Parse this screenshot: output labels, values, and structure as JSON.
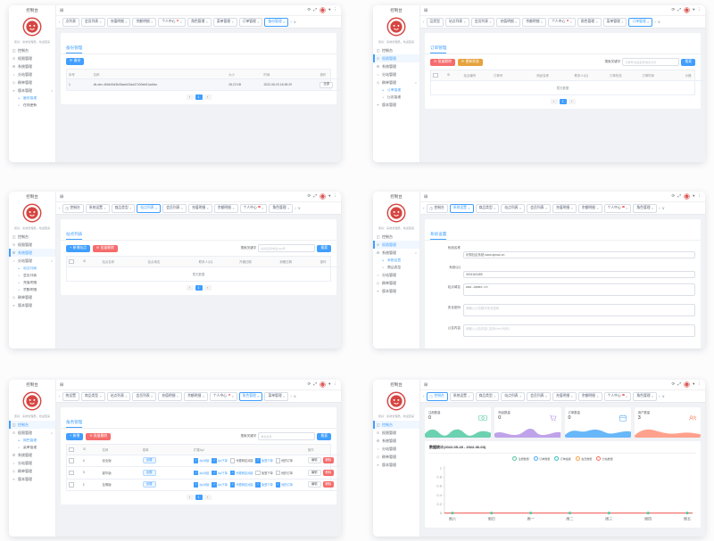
{
  "app": {
    "title": "控制台",
    "greeting": "您好：系统管理员，欢迎回来",
    "colors": {
      "primary": "#409eff",
      "danger": "#f56c6c",
      "warning": "#e6a23c",
      "logo_red": "#d64541"
    },
    "topbar_icons": [
      "collapse-grid-icon",
      "refresh-icon",
      "fullscreen-icon",
      "avatar",
      "caret-down-icon",
      "kebab-menu-icon"
    ]
  },
  "chart_data": {
    "type": "line",
    "title": "数据统计(2022-05-28 - 2022-06-03)",
    "x": [
      "周六",
      "周日",
      "周一",
      "周二",
      "周三",
      "周四",
      "周五"
    ],
    "yticks": [
      1,
      0.8,
      0.6,
      0.4,
      0.2,
      0
    ],
    "ylim": [
      0,
      1
    ],
    "legend_position": "top",
    "series": [
      {
        "name": "注册数量",
        "color": "#52c9a2",
        "values": [
          0,
          0,
          0,
          0,
          0,
          0,
          0
        ]
      },
      {
        "name": "订单数量",
        "color": "#4daaf8",
        "values": [
          0,
          0,
          0,
          0,
          0,
          0,
          0
        ]
      },
      {
        "name": "订单金额",
        "color": "#35c3c3",
        "values": [
          0,
          0,
          0,
          0,
          0,
          0,
          0
        ]
      },
      {
        "name": "会员数量",
        "color": "#ffa040",
        "values": [
          0,
          0,
          0,
          0,
          0,
          0,
          0
        ]
      },
      {
        "name": "分站数量",
        "color": "#ff6a5e",
        "values": [
          0,
          0,
          0,
          0,
          0,
          0,
          0
        ]
      }
    ]
  },
  "panels": [
    {
      "name": "backup-management",
      "sidebar": [
        {
          "label": "控制台",
          "icon": "dashboard-icon"
        },
        {
          "label": "权限管理",
          "icon": "permission-icon"
        },
        {
          "label": "系统管理",
          "icon": "system-icon"
        },
        {
          "label": "分站管理",
          "icon": "branch-icon"
        },
        {
          "label": "刷单管理",
          "icon": "orders-icon"
        },
        {
          "label": "版本管理",
          "icon": "version-icon",
          "expanded": true,
          "children": [
            {
              "label": "备份管理",
              "active": true
            },
            {
              "label": "在线更新"
            }
          ]
        }
      ],
      "tabs": [
        {
          "label": "点列表",
          "partial": true
        },
        {
          "label": "会员列表"
        },
        {
          "label": "充值明细"
        },
        {
          "label": "余额明细"
        },
        {
          "label": "个人中心",
          "dot": true
        },
        {
          "label": "角色管理"
        },
        {
          "label": "菜单管理"
        },
        {
          "label": "订单管理"
        },
        {
          "label": "备份管理",
          "active": true
        }
      ],
      "page": {
        "type": "table",
        "title": "备份管理",
        "buttons": [
          {
            "label": "备份",
            "style": "blue",
            "icon": "refresh-icon"
          }
        ],
        "table": {
          "headers": [
            "序号",
            "名称",
            "大小",
            "时间",
            "操作"
          ],
          "widths": [
            8,
            50,
            12,
            20,
            10
          ],
          "rows": [
            [
              "1",
              "db-dev-4b5e00d3b08aeb23da37400eb51ad4ec",
              "28.22 KB",
              "2022-06-03 18:38:29"
            ]
          ],
          "row_action": "还原"
        },
        "pagination": [
          "‹",
          "1",
          "›"
        ]
      }
    },
    {
      "name": "order-management",
      "sidebar": [
        {
          "label": "控制台",
          "icon": "dashboard-icon"
        },
        {
          "label": "权限管理",
          "icon": "permission-icon",
          "active": true
        },
        {
          "label": "系统管理",
          "icon": "system-icon"
        },
        {
          "label": "分站管理",
          "icon": "branch-icon"
        },
        {
          "label": "刷单管理",
          "icon": "orders-icon",
          "expanded": true,
          "children": [
            {
              "label": "订单管理",
              "active": true
            },
            {
              "label": "日志管理"
            }
          ]
        },
        {
          "label": "版本管理",
          "icon": "version-icon"
        }
      ],
      "tabs": [
        {
          "label": "品类型",
          "partial": true
        },
        {
          "label": "站点列表"
        },
        {
          "label": "会员列表"
        },
        {
          "label": "充值明细"
        },
        {
          "label": "余额明细"
        },
        {
          "label": "个人中心",
          "dot": true
        },
        {
          "label": "角色管理"
        },
        {
          "label": "菜单管理"
        },
        {
          "label": "订单管理",
          "active": true
        }
      ],
      "page": {
        "type": "table",
        "title": "订单管理",
        "buttons": [
          {
            "label": "批量删除",
            "style": "red",
            "icon": "delete-icon"
          },
          {
            "label": "更新状态",
            "style": "orange",
            "icon": "refresh-icon"
          }
        ],
        "search": {
          "label": "搜索关键字",
          "placeholder": "订单号/商品名称/联系方式",
          "button": "搜索"
        },
        "table": {
          "headers": [
            "",
            "ID",
            "站点编号",
            "订单号",
            "商品名称",
            "联系人QQ",
            "订单状态",
            "订单时间",
            "价格",
            "操作"
          ],
          "widths": [
            4,
            5,
            10,
            15,
            13,
            12,
            11,
            15,
            7,
            8
          ],
          "checkbox_col": 0,
          "rows": []
        },
        "empty": "暂无数据",
        "pagination": [
          "‹",
          "1",
          "›"
        ]
      }
    },
    {
      "name": "site-list",
      "sidebar": [
        {
          "label": "控制台",
          "icon": "dashboard-icon"
        },
        {
          "label": "权限管理",
          "icon": "permission-icon"
        },
        {
          "label": "系统管理",
          "icon": "system-icon",
          "active": true
        },
        {
          "label": "分站管理",
          "icon": "branch-icon",
          "expanded": true,
          "children": [
            {
              "label": "站点列表",
              "active": true
            },
            {
              "label": "会员列表"
            },
            {
              "label": "充值明细"
            },
            {
              "label": "余额明细"
            }
          ]
        },
        {
          "label": "刷单管理",
          "icon": "orders-icon"
        },
        {
          "label": "版本管理",
          "icon": "version-icon"
        }
      ],
      "tabs": [
        {
          "label": "控制台",
          "icon": "dashboard-icon",
          "closable": false
        },
        {
          "label": "系统设置"
        },
        {
          "label": "商品类型"
        },
        {
          "label": "站点列表",
          "active": true
        },
        {
          "label": "会员列表"
        },
        {
          "label": "充值明细"
        },
        {
          "label": "余额明细"
        },
        {
          "label": "个人中心",
          "dot": true
        },
        {
          "label": "角色管理"
        }
      ],
      "page": {
        "type": "table",
        "title": "站点列表",
        "buttons": [
          {
            "label": "新增站点",
            "style": "blue",
            "icon": "plus-icon"
          },
          {
            "label": "批量删除",
            "style": "red",
            "icon": "delete-icon"
          }
        ],
        "search": {
          "label": "搜索关键字",
          "placeholder": "站点名称/域名/QQ号",
          "button": "搜索"
        },
        "table": {
          "headers": [
            "",
            "ID",
            "站点名称",
            "站点域名",
            "联系人QQ",
            "开通日期",
            "到期日期",
            "操作"
          ],
          "widths": [
            4,
            6,
            16,
            18,
            14,
            14,
            14,
            14
          ],
          "checkbox_col": 0,
          "rows": []
        },
        "empty": "暂无数据",
        "pagination": [
          "‹",
          "1",
          "›"
        ]
      }
    },
    {
      "name": "system-settings",
      "sidebar": [
        {
          "label": "控制台",
          "icon": "dashboard-icon"
        },
        {
          "label": "权限管理",
          "icon": "permission-icon",
          "active": true
        },
        {
          "label": "系统管理",
          "icon": "system-icon",
          "expanded": true,
          "children": [
            {
              "label": "系统设置",
              "active": true
            },
            {
              "label": "商品类型"
            }
          ]
        },
        {
          "label": "分站管理",
          "icon": "branch-icon"
        },
        {
          "label": "刷单管理",
          "icon": "orders-icon"
        },
        {
          "label": "版本管理",
          "icon": "version-icon"
        }
      ],
      "tabs": [
        {
          "label": "控制台",
          "icon": "dashboard-icon",
          "closable": false
        },
        {
          "label": "系统设置",
          "active": true
        },
        {
          "label": "商品类型"
        },
        {
          "label": "站点列表"
        },
        {
          "label": "会员列表"
        },
        {
          "label": "充值明细"
        },
        {
          "label": "余额明细"
        },
        {
          "label": "个人中心",
          "dot": true
        },
        {
          "label": "角色管理"
        }
      ],
      "page": {
        "type": "form",
        "title": "系统设置",
        "fields": [
          {
            "label": "系统名称",
            "kind": "input",
            "value": "乐购社区系统-www.iqmao.cn"
          },
          {
            "label": "系统QQ",
            "kind": "input",
            "value": "3001163489"
          },
          {
            "label": "站点域名",
            "kind": "textarea",
            "value": "www.iqmao.cn"
          },
          {
            "label": "安全密码",
            "kind": "textarea",
            "placeholder": "请输入六位数字安全密码"
          },
          {
            "label": "公告内容",
            "kind": "textarea",
            "placeholder": "请输入公告内容(支持html代码)"
          }
        ],
        "submit": "提交"
      }
    },
    {
      "name": "role-management",
      "sidebar": [
        {
          "label": "控制台",
          "icon": "dashboard-icon",
          "active": true
        },
        {
          "label": "权限管理",
          "icon": "permission-icon",
          "expanded": true,
          "children": [
            {
              "label": "角色管理",
              "active": true
            },
            {
              "label": "菜单管理"
            }
          ]
        },
        {
          "label": "系统管理",
          "icon": "system-icon"
        },
        {
          "label": "分站管理",
          "icon": "branch-icon"
        },
        {
          "label": "刷单管理",
          "icon": "orders-icon"
        },
        {
          "label": "版本管理",
          "icon": "version-icon"
        }
      ],
      "tabs": [
        {
          "label": "统设置",
          "partial": true
        },
        {
          "label": "商品类型"
        },
        {
          "label": "站点列表"
        },
        {
          "label": "会员列表"
        },
        {
          "label": "充值明细"
        },
        {
          "label": "余额明细"
        },
        {
          "label": "个人中心",
          "dot": true
        },
        {
          "label": "角色管理",
          "active": true
        },
        {
          "label": "菜单管理"
        }
      ],
      "page": {
        "type": "roles",
        "title": "角色管理",
        "buttons": [
          {
            "label": "新增",
            "style": "blue",
            "icon": "plus-icon"
          },
          {
            "label": "批量删除",
            "style": "red",
            "icon": "delete-icon"
          }
        ],
        "search": {
          "label": "搜索关键字",
          "placeholder": "角色名称",
          "button": "搜索"
        },
        "headers": [
          "",
          "ID",
          "名称",
          "菜单",
          "扩展Api",
          "操作"
        ],
        "widths": [
          4,
          6,
          14,
          18,
          42,
          16
        ],
        "rows": [
          {
            "id": "4",
            "name": "创业版",
            "menu_button": "设置",
            "checks": [
              {
                "label": "Api对接",
                "checked": true
              },
              {
                "label": "Api下单",
                "checked": true
              },
              {
                "label": "代理网站对接",
                "checked": false
              },
              {
                "label": "免登下单",
                "checked": true
              },
              {
                "label": "他的订单",
                "checked": false
              }
            ],
            "actions": [
              "编辑",
              "删除"
            ]
          },
          {
            "id": "3",
            "name": "豪华版",
            "menu_button": "设置",
            "checks": [
              {
                "label": "Api对接",
                "checked": true
              },
              {
                "label": "Api下单",
                "checked": true
              },
              {
                "label": "代理网站对接",
                "checked": true
              },
              {
                "label": "免登下单",
                "checked": false
              },
              {
                "label": "他的订单",
                "checked": false
              }
            ],
            "actions": [
              "编辑",
              "删除"
            ]
          },
          {
            "id": "2",
            "name": "至尊版",
            "menu_button": "设置",
            "checks": [
              {
                "label": "Api对接",
                "checked": true
              },
              {
                "label": "Api下单",
                "checked": true
              },
              {
                "label": "代理网站对接",
                "checked": true
              },
              {
                "label": "免登下单",
                "checked": true
              },
              {
                "label": "他的订单",
                "checked": true
              }
            ],
            "actions": [
              "编辑",
              "删除"
            ]
          }
        ],
        "pagination": [
          "‹",
          "1",
          "›"
        ]
      }
    },
    {
      "name": "dashboard",
      "sidebar": [
        {
          "label": "控制台",
          "icon": "dashboard-icon",
          "active": true
        },
        {
          "label": "权限管理",
          "icon": "permission-icon"
        },
        {
          "label": "系统管理",
          "icon": "system-icon"
        },
        {
          "label": "分站管理",
          "icon": "branch-icon"
        },
        {
          "label": "刷单管理",
          "icon": "orders-icon"
        },
        {
          "label": "版本管理",
          "icon": "version-icon"
        }
      ],
      "tabs": [
        {
          "label": "控制台",
          "icon": "dashboard-icon",
          "closable": false,
          "active": true
        },
        {
          "label": "系统设置"
        },
        {
          "label": "商品类型"
        },
        {
          "label": "站点列表"
        },
        {
          "label": "会员列表"
        },
        {
          "label": "充值明细"
        },
        {
          "label": "余额明细"
        },
        {
          "label": "个人中心",
          "dot": true
        },
        {
          "label": "角色管理"
        }
      ],
      "page": {
        "type": "dash",
        "cards": [
          {
            "label": "注册数量",
            "value": "0",
            "icon": "money-icon",
            "color": "#52c9a2",
            "wave": "green"
          },
          {
            "label": "商品数量",
            "value": "0",
            "icon": "cart-icon",
            "color": "#b493e6",
            "wave": "purple"
          },
          {
            "label": "订单数量",
            "value": "0",
            "icon": "calendar-icon",
            "color": "#4daaf8",
            "wave": "blue"
          },
          {
            "label": "用户数量",
            "value": "3",
            "icon": "users-icon",
            "color": "#ff9078",
            "wave": "salmon"
          }
        ],
        "chart": {
          "title": "数据统计(2022-05-28 - 2022-06-03)",
          "legend": [
            {
              "name": "注册数量",
              "color": "#52c9a2"
            },
            {
              "name": "订单数量",
              "color": "#4daaf8"
            },
            {
              "name": "订单金额",
              "color": "#35c3c3"
            },
            {
              "name": "会员数量",
              "color": "#ffa040"
            },
            {
              "name": "分站数量",
              "color": "#ff6a5e"
            }
          ],
          "yticks": [
            "1",
            "0.8",
            "0.6",
            "0.4",
            "0.2",
            "0"
          ],
          "x": [
            "周六",
            "周日",
            "周一",
            "周二",
            "周三",
            "周四",
            "周五"
          ],
          "zero_line_color": "#f2726f",
          "marker_color": "#52c9a2"
        }
      }
    }
  ]
}
